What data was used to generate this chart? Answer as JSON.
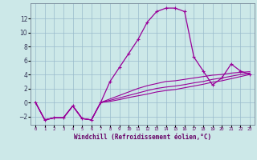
{
  "xlabel": "Windchill (Refroidissement éolien,°C)",
  "background_color": "#cce8e8",
  "grid_color": "#99bbcc",
  "line_color": "#990099",
  "marker_color": "#990099",
  "x_hours": [
    0,
    1,
    2,
    3,
    4,
    5,
    6,
    7,
    8,
    9,
    10,
    11,
    12,
    13,
    14,
    15,
    16,
    17,
    18,
    19,
    20,
    21,
    22,
    23
  ],
  "windchill": [
    0,
    -2.5,
    -2.2,
    -2.2,
    -0.5,
    -2.3,
    -2.5,
    0,
    3,
    5,
    7,
    9,
    11.5,
    13,
    13.5,
    13.5,
    13,
    6.5,
    4.5,
    2.5,
    3.5,
    5.5,
    4.5,
    4
  ],
  "temp": [
    0,
    -2.5,
    -2.2,
    -2.2,
    -0.5,
    -2.3,
    -2.5,
    0,
    0.5,
    1,
    1.5,
    2,
    2.4,
    2.7,
    3.0,
    3.1,
    3.3,
    3.5,
    3.7,
    3.9,
    4.0,
    4.2,
    4.3,
    4.4
  ],
  "line2_y": [
    0,
    -2.5,
    -2.2,
    -2.2,
    -0.5,
    -2.3,
    -2.5,
    0,
    0.3,
    0.65,
    1.0,
    1.35,
    1.7,
    2.0,
    2.2,
    2.35,
    2.55,
    2.8,
    3.0,
    3.3,
    3.5,
    3.75,
    4.0,
    4.2
  ],
  "line3_y": [
    0,
    -2.5,
    -2.2,
    -2.2,
    -0.5,
    -2.3,
    -2.5,
    0,
    0.15,
    0.4,
    0.7,
    0.95,
    1.2,
    1.5,
    1.7,
    1.85,
    2.1,
    2.35,
    2.6,
    2.9,
    3.1,
    3.4,
    3.7,
    4.0
  ],
  "ylim": [
    -3.2,
    14.2
  ],
  "xlim": [
    -0.5,
    23.5
  ],
  "yticks": [
    -2,
    0,
    2,
    4,
    6,
    8,
    10,
    12
  ],
  "xtick_labels": [
    "0",
    "1",
    "2",
    "3",
    "4",
    "5",
    "6",
    "7",
    "8",
    "9",
    "10",
    "11",
    "12",
    "13",
    "14",
    "15",
    "16",
    "17",
    "18",
    "19",
    "20",
    "21",
    "22",
    "23"
  ]
}
